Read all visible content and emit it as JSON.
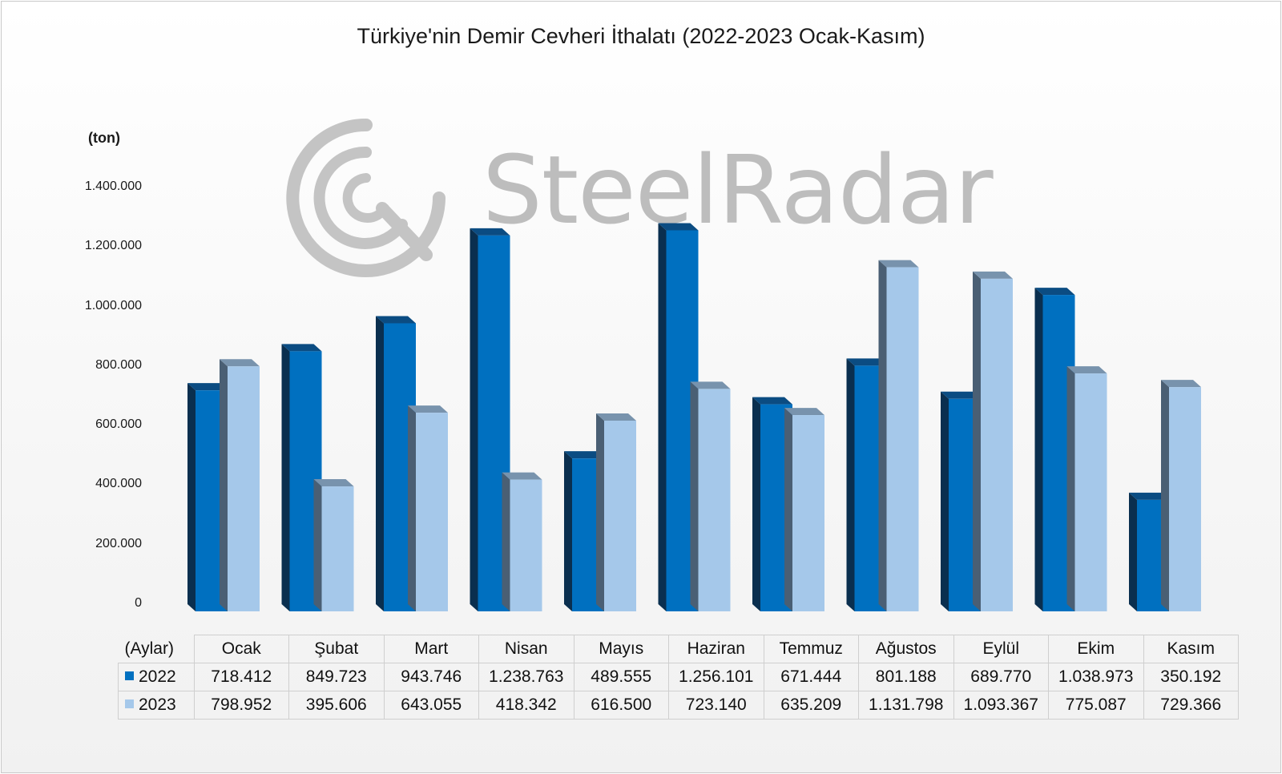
{
  "chart_data": {
    "type": "bar",
    "title": "Türkiye'nin Demir Cevheri İthalatı (2022-2023 Ocak-Kasım)",
    "ylabel": "(ton)",
    "xlabel": "(Aylar)",
    "ylim": [
      0,
      1400000
    ],
    "yticks": [
      "1.400.000",
      "1.200.000",
      "1.000.000",
      "800.000",
      "600.000",
      "400.000",
      "200.000",
      "0"
    ],
    "yticks_values": [
      1400000,
      1200000,
      1000000,
      800000,
      600000,
      400000,
      200000,
      0
    ],
    "categories": [
      "Ocak",
      "Şubat",
      "Mart",
      "Nisan",
      "Mayıs",
      "Haziran",
      "Temmuz",
      "Ağustos",
      "Eylül",
      "Ekim",
      "Kasım"
    ],
    "series": [
      {
        "name": "2022",
        "color": "#0070c0",
        "values": [
          718412,
          849723,
          943746,
          1238763,
          489555,
          1256101,
          671444,
          801188,
          689770,
          1038973,
          350192
        ],
        "labels": [
          "718.412",
          "849.723",
          "943.746",
          "1.238.763",
          "489.555",
          "1.256.101",
          "671.444",
          "801.188",
          "689.770",
          "1.038.973",
          "350.192"
        ]
      },
      {
        "name": "2023",
        "color": "#a5c8ea",
        "values": [
          798952,
          395606,
          643055,
          418342,
          616500,
          723140,
          635209,
          1131798,
          1093367,
          775087,
          729366
        ],
        "labels": [
          "798.952",
          "395.606",
          "643.055",
          "418.342",
          "616.500",
          "723.140",
          "635.209",
          "1.131.798",
          "1.093.367",
          "775.087",
          "729.366"
        ]
      }
    ],
    "grid": false,
    "legend": "data-table"
  },
  "watermark": {
    "text": "SteelRadar",
    "icon": "steelradar-logo-icon"
  }
}
